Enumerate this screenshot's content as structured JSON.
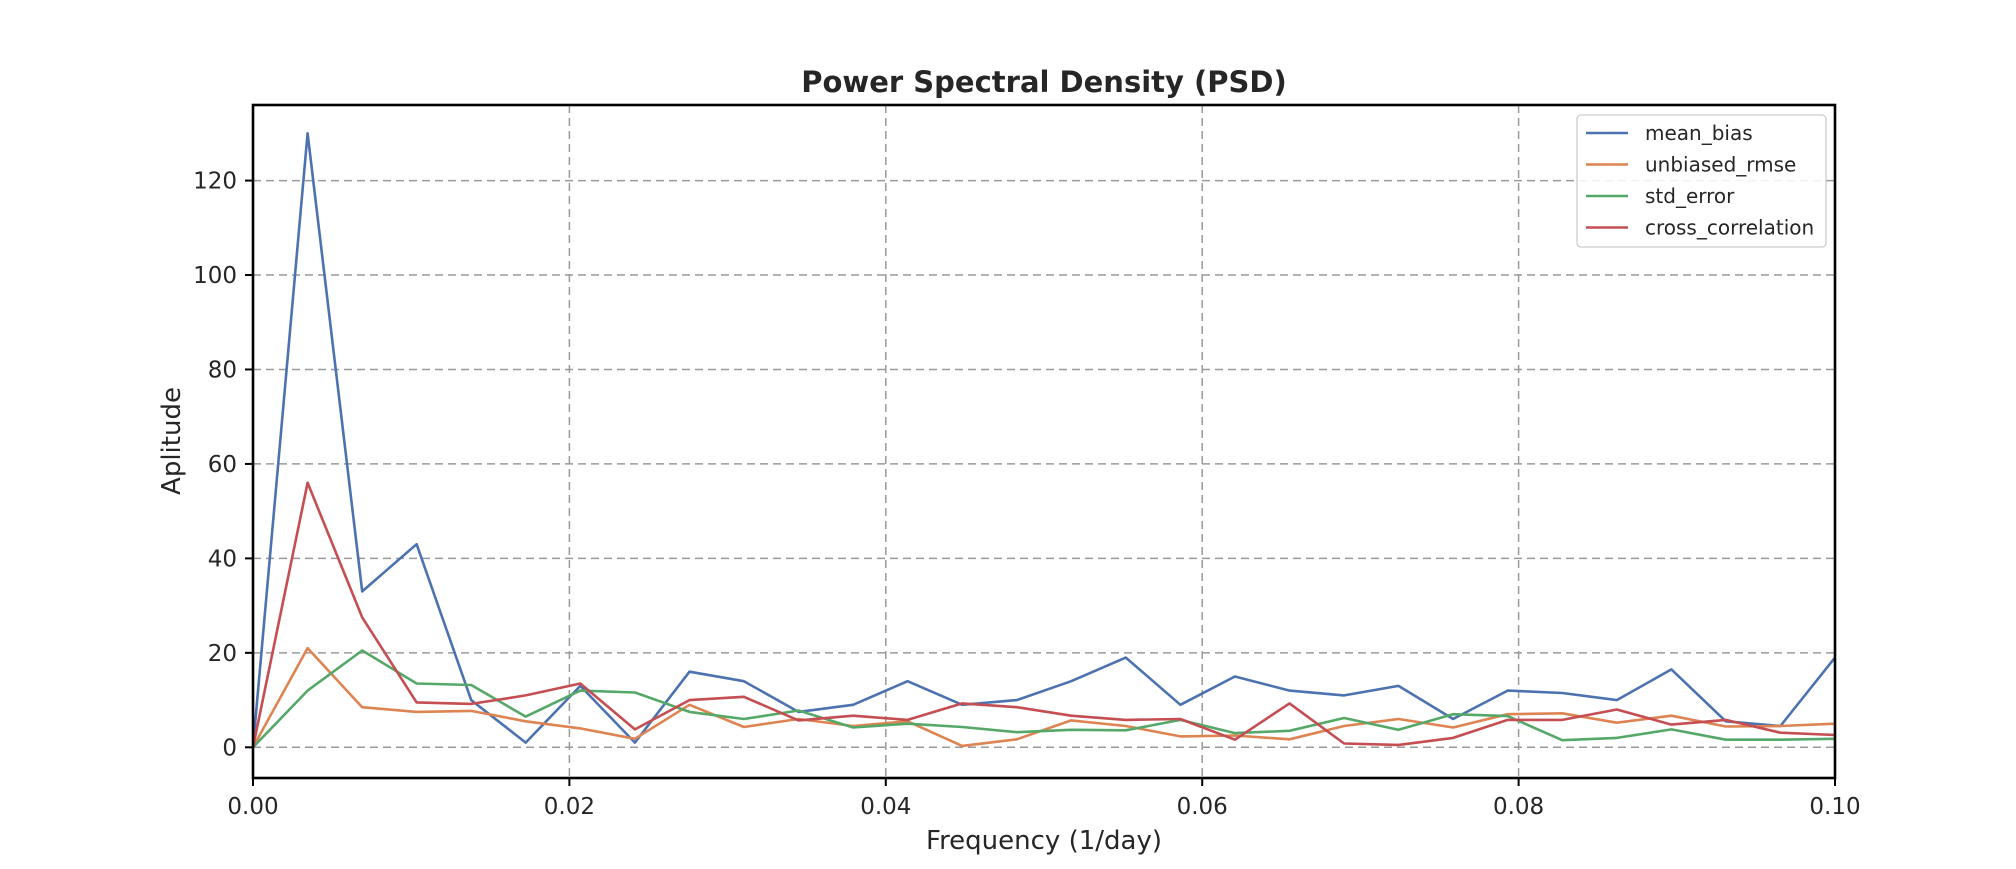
{
  "chart_data": {
    "type": "line",
    "title": "Power Spectral Density (PSD)",
    "xlabel": "Frequency (1/day)",
    "ylabel": "Aplitude",
    "xlim": [
      0.0,
      0.1
    ],
    "ylim": [
      -6.5,
      136
    ],
    "xticks": [
      0.0,
      0.02,
      0.04,
      0.06,
      0.08,
      0.1
    ],
    "xtick_labels": [
      "0.00",
      "0.02",
      "0.04",
      "0.06",
      "0.08",
      "0.10"
    ],
    "yticks": [
      0,
      20,
      40,
      60,
      80,
      100,
      120
    ],
    "ytick_labels": [
      "0",
      "20",
      "40",
      "60",
      "80",
      "100",
      "120"
    ],
    "grid": true,
    "legend_position": "top-right",
    "x": [
      0.0,
      0.00345,
      0.0069,
      0.01034,
      0.01379,
      0.01724,
      0.02069,
      0.02414,
      0.02759,
      0.03103,
      0.03448,
      0.03793,
      0.04138,
      0.04483,
      0.04828,
      0.05172,
      0.05517,
      0.05862,
      0.06207,
      0.06552,
      0.06897,
      0.07241,
      0.07586,
      0.07931,
      0.08276,
      0.08621,
      0.08966,
      0.0931,
      0.09655,
      0.1
    ],
    "series": [
      {
        "name": "mean_bias",
        "color": "#4c72b0",
        "values": [
          0,
          130,
          33,
          43,
          10,
          1,
          13,
          1,
          16,
          14,
          7.5,
          9,
          14,
          9,
          10,
          14,
          19,
          9,
          15,
          12,
          11,
          13,
          6,
          12,
          11.5,
          10,
          16.5,
          5.5,
          4.5,
          19
        ]
      },
      {
        "name": "unbiased_rmse",
        "color": "#dd8452",
        "values": [
          0,
          21,
          8.5,
          7.5,
          7.7,
          5.5,
          4,
          1.8,
          9,
          4.3,
          6,
          4.5,
          5.5,
          0.3,
          1.7,
          5.7,
          4.5,
          2.3,
          2.5,
          1.7,
          4.5,
          6,
          4.2,
          7,
          7.2,
          5.2,
          6.7,
          4.4,
          4.5,
          5
        ]
      },
      {
        "name": "std_error",
        "color": "#55a868",
        "values": [
          0,
          12,
          20.5,
          13.5,
          13.2,
          6.5,
          12,
          11.6,
          7.5,
          6,
          7.8,
          4.2,
          5,
          4.3,
          3.2,
          3.7,
          3.6,
          5.8,
          3,
          3.5,
          6.2,
          3.7,
          7,
          6.6,
          1.5,
          2,
          3.8,
          1.6,
          1.6,
          1.8
        ]
      },
      {
        "name": "cross_correlation",
        "color": "#c44e52",
        "values": [
          0,
          56,
          27.5,
          9.5,
          9.2,
          11,
          13.5,
          3.8,
          10,
          10.7,
          5.7,
          6.7,
          5.8,
          9.3,
          8.5,
          6.7,
          5.8,
          6,
          1.6,
          9.3,
          0.8,
          0.5,
          2,
          5.8,
          5.8,
          8,
          4.8,
          5.8,
          3.1,
          2.6
        ]
      }
    ]
  }
}
